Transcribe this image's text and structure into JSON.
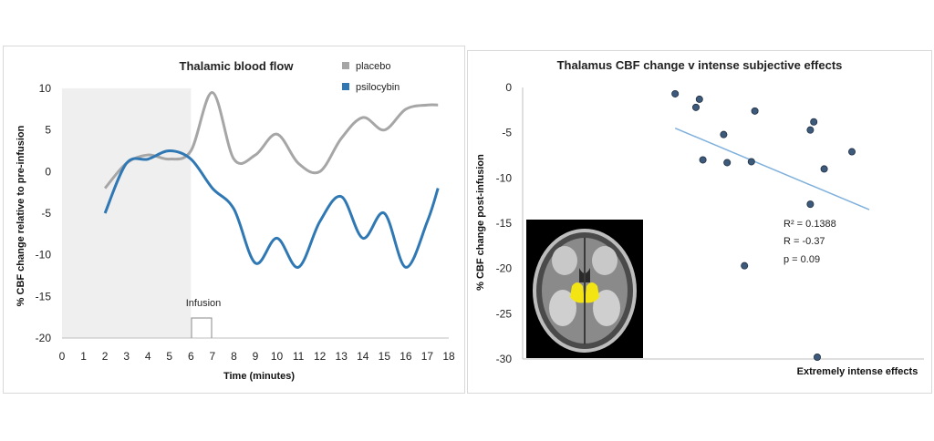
{
  "colors": {
    "placebo": "#a6a6a6",
    "psilocybin": "#2f78b4",
    "pre_infusion_shade": "#efefef",
    "trend": "#7fb0dc",
    "points": "#3e5a7a",
    "thalamus": "#f3e513"
  },
  "chart_data": [
    {
      "type": "line",
      "title": "Thalamic blood flow",
      "xlabel": "Time (minutes)",
      "ylabel": "% CBF change relative to pre-infusion",
      "xlim": [
        0,
        18
      ],
      "ylim": [
        -20,
        10
      ],
      "xticks": [
        "0",
        "1",
        "2",
        "3",
        "4",
        "5",
        "6",
        "7",
        "8",
        "9",
        "10",
        "11",
        "12",
        "13",
        "14",
        "15",
        "16",
        "17",
        "18"
      ],
      "yticks": [
        "10",
        "5",
        "0",
        "-5",
        "-10",
        "-15",
        "-20"
      ],
      "legend": "top-right",
      "annotation": "Infusion",
      "shaded_region": [
        0,
        6
      ],
      "series": [
        {
          "name": "placebo",
          "color": "#a6a6a6",
          "x": [
            2,
            3,
            4,
            5,
            6,
            7,
            8,
            9,
            10,
            11,
            12,
            13,
            14,
            15,
            16,
            17,
            17.5
          ],
          "y": [
            -2,
            1,
            2,
            1.5,
            2.5,
            9.5,
            1.5,
            2,
            4.5,
            1,
            0,
            4,
            6.5,
            5,
            7.5,
            8,
            8
          ]
        },
        {
          "name": "psilocybin",
          "color": "#2f78b4",
          "x": [
            2,
            3,
            4,
            5,
            6,
            7,
            8,
            9,
            10,
            11,
            12,
            13,
            14,
            15,
            16,
            17,
            17.5
          ],
          "y": [
            -5,
            1,
            1.5,
            2.5,
            1.5,
            -2,
            -4.5,
            -11,
            -8,
            -11.5,
            -6,
            -3,
            -8,
            -5,
            -11.5,
            -6,
            -2
          ]
        }
      ]
    },
    {
      "type": "scatter",
      "title": "Thalamus CBF change v intense subjective effects",
      "xlabel": "Extremely intense effects",
      "ylabel": "% CBF change post-infusion",
      "ylim": [
        -30,
        0
      ],
      "yticks": [
        "0",
        "-5",
        "-10",
        "-15",
        "-20",
        "-25",
        "-30"
      ],
      "stats": [
        "R² = 0.1388",
        "R = -0.37",
        "p = 0.09"
      ],
      "trendline": {
        "start": -4.5,
        "end": -13.5
      },
      "points": [
        {
          "x": 0.44,
          "y": -0.7
        },
        {
          "x": 0.5,
          "y": -2.2
        },
        {
          "x": 0.51,
          "y": -1.3
        },
        {
          "x": 0.52,
          "y": -8
        },
        {
          "x": 0.58,
          "y": -5.2
        },
        {
          "x": 0.59,
          "y": -8.3
        },
        {
          "x": 0.66,
          "y": -8.2
        },
        {
          "x": 0.67,
          "y": -2.6
        },
        {
          "x": 0.64,
          "y": -19.7
        },
        {
          "x": 0.83,
          "y": -4.7
        },
        {
          "x": 0.84,
          "y": -3.8
        },
        {
          "x": 0.83,
          "y": -12.9
        },
        {
          "x": 0.87,
          "y": -9
        },
        {
          "x": 0.95,
          "y": -7.1
        },
        {
          "x": 0.85,
          "y": -29.8
        }
      ]
    }
  ]
}
